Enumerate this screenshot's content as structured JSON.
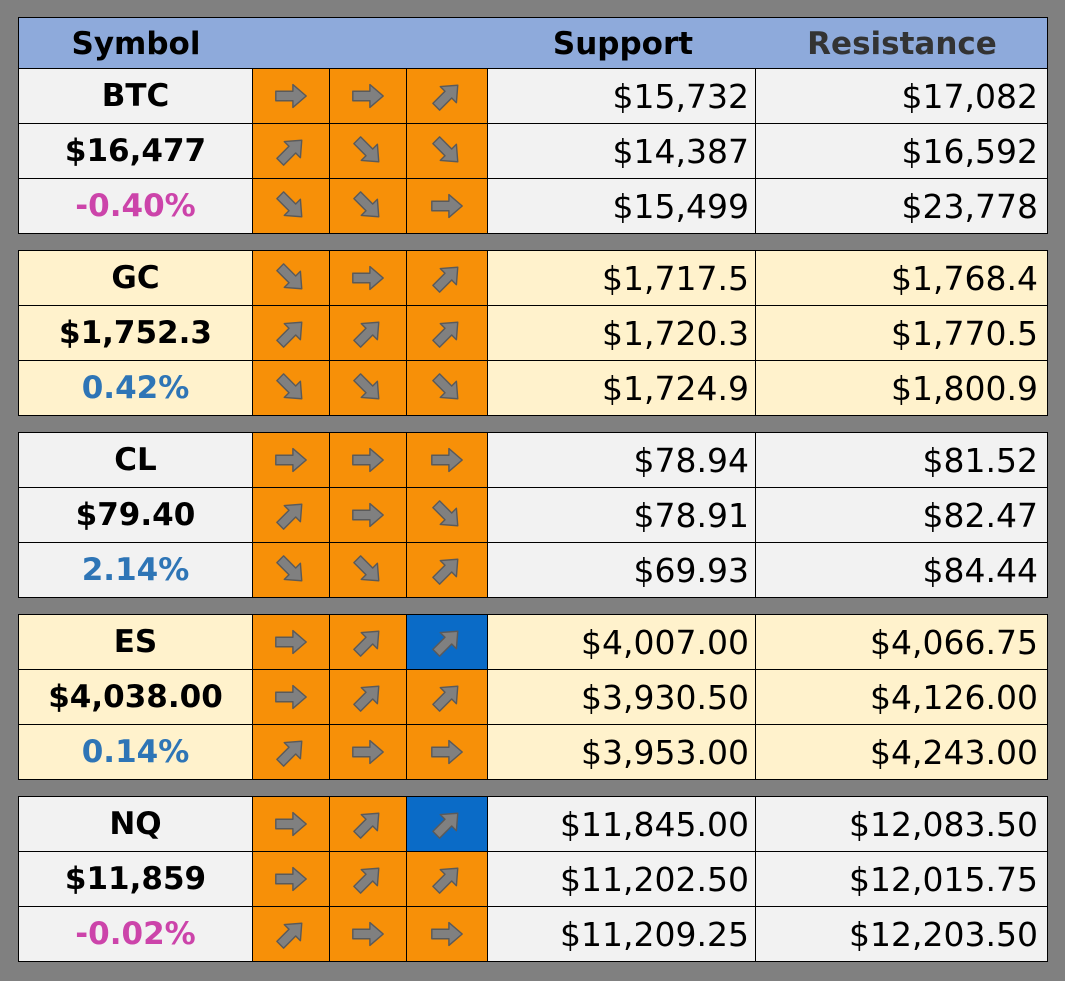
{
  "header": {
    "symbol": "Symbol",
    "support": "Support",
    "resistance": "Resistance"
  },
  "colors": {
    "arrow_bg": "#f79008",
    "arrow_highlight_bg": "#0a6bc7",
    "positive": "#2e75b6",
    "negative": "#cc44aa"
  },
  "groups": [
    {
      "symbol": "BTC",
      "price": "$16,477",
      "change": "-0.40%",
      "change_sign": "neg",
      "bg": "gray",
      "rows": [
        {
          "arrows": [
            "right-arrow-icon",
            "right-arrow-icon",
            "up-right-arrow-icon"
          ],
          "highlight": [
            false,
            false,
            false
          ],
          "support": "$15,732",
          "resistance": "$17,082"
        },
        {
          "arrows": [
            "up-right-arrow-icon",
            "down-right-arrow-icon",
            "down-right-arrow-icon"
          ],
          "highlight": [
            false,
            false,
            false
          ],
          "support": "$14,387",
          "resistance": "$16,592"
        },
        {
          "arrows": [
            "down-right-arrow-icon",
            "down-right-arrow-icon",
            "right-arrow-icon"
          ],
          "highlight": [
            false,
            false,
            false
          ],
          "support": "$15,499",
          "resistance": "$23,778"
        }
      ]
    },
    {
      "symbol": "GC",
      "price": "$1,752.3",
      "change": "0.42%",
      "change_sign": "pos",
      "bg": "cream",
      "rows": [
        {
          "arrows": [
            "down-right-arrow-icon",
            "right-arrow-icon",
            "up-right-arrow-icon"
          ],
          "highlight": [
            false,
            false,
            false
          ],
          "support": "$1,717.5",
          "resistance": "$1,768.4"
        },
        {
          "arrows": [
            "up-right-arrow-icon",
            "up-right-arrow-icon",
            "up-right-arrow-icon"
          ],
          "highlight": [
            false,
            false,
            false
          ],
          "support": "$1,720.3",
          "resistance": "$1,770.5"
        },
        {
          "arrows": [
            "down-right-arrow-icon",
            "down-right-arrow-icon",
            "down-right-arrow-icon"
          ],
          "highlight": [
            false,
            false,
            false
          ],
          "support": "$1,724.9",
          "resistance": "$1,800.9"
        }
      ]
    },
    {
      "symbol": "CL",
      "price": "$79.40",
      "change": "2.14%",
      "change_sign": "pos",
      "bg": "gray",
      "rows": [
        {
          "arrows": [
            "right-arrow-icon",
            "right-arrow-icon",
            "right-arrow-icon"
          ],
          "highlight": [
            false,
            false,
            false
          ],
          "support": "$78.94",
          "resistance": "$81.52"
        },
        {
          "arrows": [
            "up-right-arrow-icon",
            "right-arrow-icon",
            "down-right-arrow-icon"
          ],
          "highlight": [
            false,
            false,
            false
          ],
          "support": "$78.91",
          "resistance": "$82.47"
        },
        {
          "arrows": [
            "down-right-arrow-icon",
            "down-right-arrow-icon",
            "up-right-arrow-icon"
          ],
          "highlight": [
            false,
            false,
            false
          ],
          "support": "$69.93",
          "resistance": "$84.44"
        }
      ]
    },
    {
      "symbol": "ES",
      "price": "$4,038.00",
      "change": "0.14%",
      "change_sign": "pos",
      "bg": "cream",
      "rows": [
        {
          "arrows": [
            "right-arrow-icon",
            "up-right-arrow-icon",
            "up-right-arrow-icon"
          ],
          "highlight": [
            false,
            false,
            true
          ],
          "support": "$4,007.00",
          "resistance": "$4,066.75"
        },
        {
          "arrows": [
            "right-arrow-icon",
            "up-right-arrow-icon",
            "up-right-arrow-icon"
          ],
          "highlight": [
            false,
            false,
            false
          ],
          "support": "$3,930.50",
          "resistance": "$4,126.00"
        },
        {
          "arrows": [
            "up-right-arrow-icon",
            "right-arrow-icon",
            "right-arrow-icon"
          ],
          "highlight": [
            false,
            false,
            false
          ],
          "support": "$3,953.00",
          "resistance": "$4,243.00"
        }
      ]
    },
    {
      "symbol": "NQ",
      "price": "$11,859",
      "change": "-0.02%",
      "change_sign": "neg",
      "bg": "gray",
      "rows": [
        {
          "arrows": [
            "right-arrow-icon",
            "up-right-arrow-icon",
            "up-right-arrow-icon"
          ],
          "highlight": [
            false,
            false,
            true
          ],
          "support": "$11,845.00",
          "resistance": "$12,083.50"
        },
        {
          "arrows": [
            "right-arrow-icon",
            "up-right-arrow-icon",
            "up-right-arrow-icon"
          ],
          "highlight": [
            false,
            false,
            false
          ],
          "support": "$11,202.50",
          "resistance": "$12,015.75"
        },
        {
          "arrows": [
            "up-right-arrow-icon",
            "right-arrow-icon",
            "right-arrow-icon"
          ],
          "highlight": [
            false,
            false,
            false
          ],
          "support": "$11,209.25",
          "resistance": "$12,203.50"
        }
      ]
    }
  ]
}
